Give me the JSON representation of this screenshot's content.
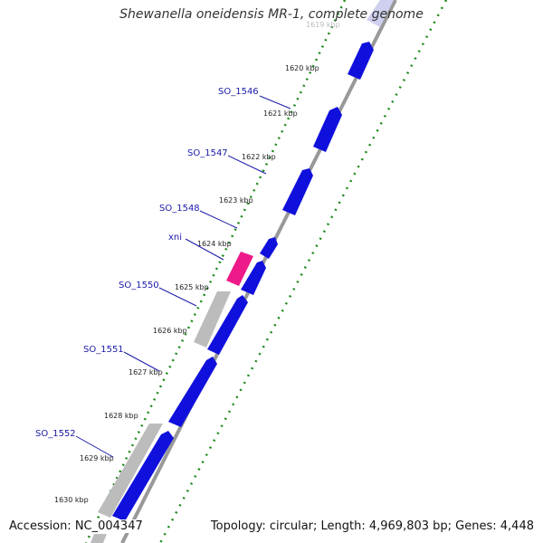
{
  "title": "Shewanella oneidensis MR-1, complete genome",
  "accession_text": "Accession: NC_004347",
  "summary_text": "Topology: circular; Length: 4,969,803 bp; Genes: 4,448",
  "colors": {
    "gene_forward": "#1010dd",
    "gene_reverse": "#bcbcbc",
    "gene_special": "#ee1a8a",
    "ruler_ticks": "#1d8a1d",
    "backbone": "#888888",
    "label_text": "#1a1aa8",
    "label_line": "#1a1aa8"
  },
  "ruler": {
    "tick_labels": [
      "1619 kbp",
      "1620 kbp",
      "1621 kbp",
      "1622 kbp",
      "1623 kbp",
      "1624 kbp",
      "1625 kbp",
      "1626 kbp",
      "1627 kbp",
      "1628 kbp",
      "1629 kbp",
      "1630 kbp"
    ]
  },
  "gene_labels": [
    "SO_1546",
    "SO_1547",
    "SO_1548",
    "xni",
    "SO_1550",
    "SO_1551",
    "SO_1552"
  ]
}
